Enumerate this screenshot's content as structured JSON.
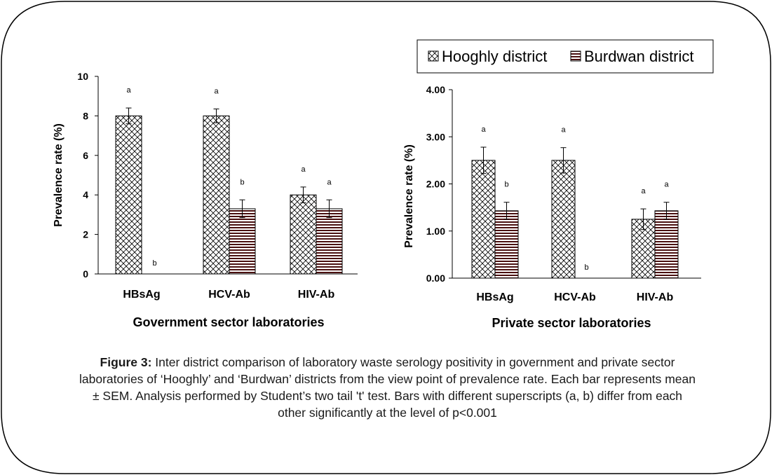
{
  "caption": {
    "label": "Figure 3:",
    "text": " Inter district comparison of laboratory waste serology positivity in government and private sector laboratories of ‘Hooghly’ and ‘Burdwan’ districts from the view point of  prevalence rate. Each bar represents mean ± SEM. Analysis performed by Student’s two tail 't' test. Bars with different superscripts (a, b) differ from each other significantly at the level of p<0.001"
  },
  "legend": [
    "Hooghly district",
    "Burdwan district"
  ],
  "colors": {
    "axis": "#000000",
    "hooghly_pattern": "#000000",
    "burdwan_stripe": "#4a1010",
    "frame": "#000000"
  },
  "chart_data": [
    {
      "type": "bar",
      "title": "",
      "xlabel": "Government sector laboratories",
      "ylabel": "Prevalence rate (%)",
      "ylim": [
        0,
        10
      ],
      "yticks": [
        "0",
        "2",
        "4",
        "6",
        "8",
        "10"
      ],
      "ytick_values": [
        0,
        2,
        4,
        6,
        8,
        10
      ],
      "categories": [
        "HBsAg",
        "HCV-Ab",
        "HIV-Ab"
      ],
      "series": [
        {
          "name": "Hooghly district",
          "values": [
            8.0,
            8.0,
            4.0
          ],
          "errors": [
            0.4,
            0.35,
            0.4
          ],
          "superscripts": [
            "a",
            "a",
            "a"
          ]
        },
        {
          "name": "Burdwan district",
          "values": [
            0,
            3.3,
            3.3
          ],
          "errors": [
            0,
            0.45,
            0.45
          ],
          "superscripts": [
            "b",
            "b",
            "a"
          ]
        }
      ]
    },
    {
      "type": "bar",
      "title": "",
      "xlabel": "Private sector laboratories",
      "ylabel": "Prevalence rate (%)",
      "ylim": [
        0,
        4
      ],
      "yticks": [
        "0.00",
        "1.00",
        "2.00",
        "3.00",
        "4.00"
      ],
      "ytick_values": [
        0,
        1,
        2,
        3,
        4
      ],
      "categories": [
        "HBsAg",
        "HCV-Ab",
        "HIV-Ab"
      ],
      "series": [
        {
          "name": "Hooghly district",
          "values": [
            2.5,
            2.5,
            1.25
          ],
          "errors": [
            0.28,
            0.27,
            0.22
          ],
          "superscripts": [
            "a",
            "a",
            "a"
          ]
        },
        {
          "name": "Burdwan district",
          "values": [
            1.43,
            0,
            1.43
          ],
          "errors": [
            0.18,
            0,
            0.18
          ],
          "superscripts": [
            "b",
            "b",
            "a"
          ]
        }
      ]
    }
  ]
}
